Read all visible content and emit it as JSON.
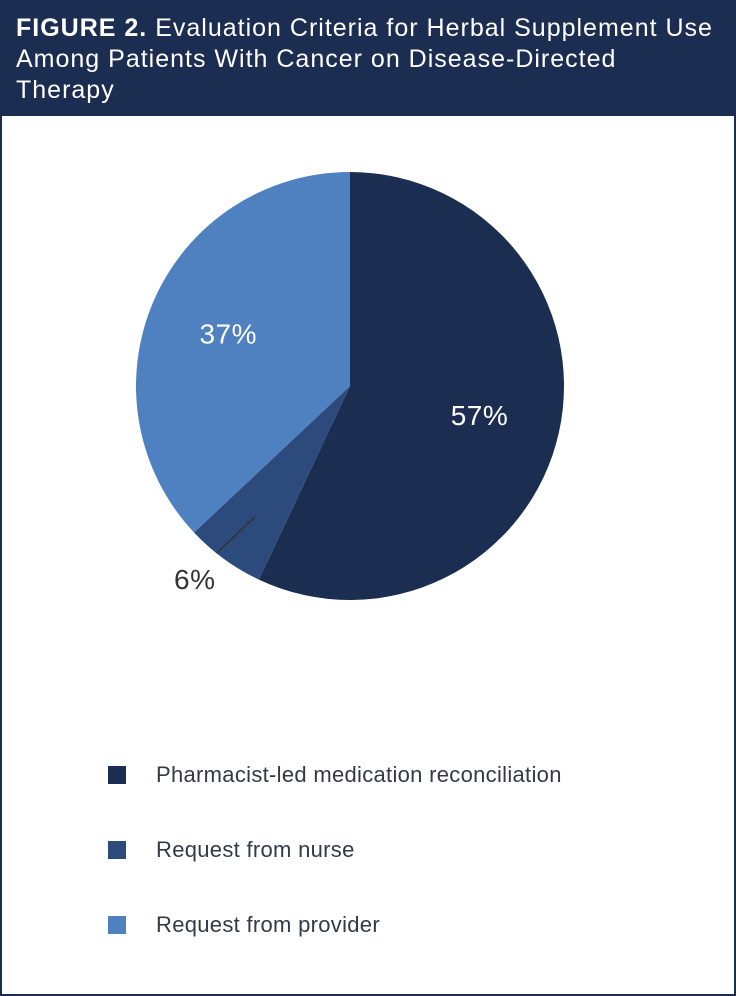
{
  "figure": {
    "label": "FIGURE 2.",
    "title": "Evaluation Criteria for Herbal Supplement Use Among Patients With Cancer on Disease-Directed Therapy"
  },
  "colors": {
    "header_bg": "#1c2d52",
    "border": "#1c2d52"
  },
  "chart_data": {
    "type": "pie",
    "slices": [
      {
        "name": "Pharmacist-led medication reconciliation",
        "value": 57,
        "label": "57%",
        "color": "#1c2d52",
        "label_color": "#ffffff"
      },
      {
        "name": "Request from nurse",
        "value": 6,
        "label": "6%",
        "color": "#2d4a7c",
        "label_color": "#333333"
      },
      {
        "name": "Request from provider",
        "value": 37,
        "label": "37%",
        "color": "#4f80c0",
        "label_color": "#ffffff"
      }
    ],
    "legend": [
      "Pharmacist-led medication reconciliation",
      "Request from nurse",
      "Request from provider"
    ],
    "legend_position": "bottom"
  }
}
